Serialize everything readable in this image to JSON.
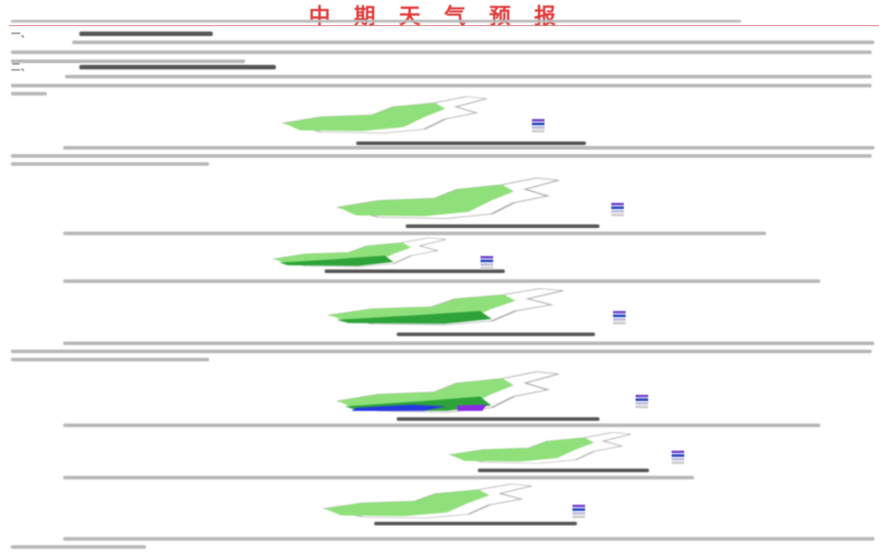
{
  "header": {
    "title": "中期天气预报"
  },
  "sections": [
    {
      "marker": "一、"
    },
    {
      "marker": "二、"
    }
  ],
  "colors": {
    "title": "#e03a3a",
    "light_green": "#8fe07a",
    "mid_green": "#4fcf4f",
    "dark_green": "#2ea33a",
    "blue": "#2438e0",
    "purple": "#8a2be2"
  },
  "maps": [
    {
      "name": "map-1",
      "fills": [
        "light_green"
      ]
    },
    {
      "name": "map-2",
      "fills": [
        "light_green"
      ]
    },
    {
      "name": "map-3",
      "fills": [
        "light_green",
        "dark_green"
      ]
    },
    {
      "name": "map-4",
      "fills": [
        "light_green",
        "dark_green"
      ]
    },
    {
      "name": "map-5",
      "fills": [
        "light_green",
        "dark_green",
        "blue",
        "purple"
      ]
    },
    {
      "name": "map-6",
      "fills": [
        "light_green"
      ]
    },
    {
      "name": "map-7",
      "fills": [
        "light_green"
      ]
    }
  ]
}
